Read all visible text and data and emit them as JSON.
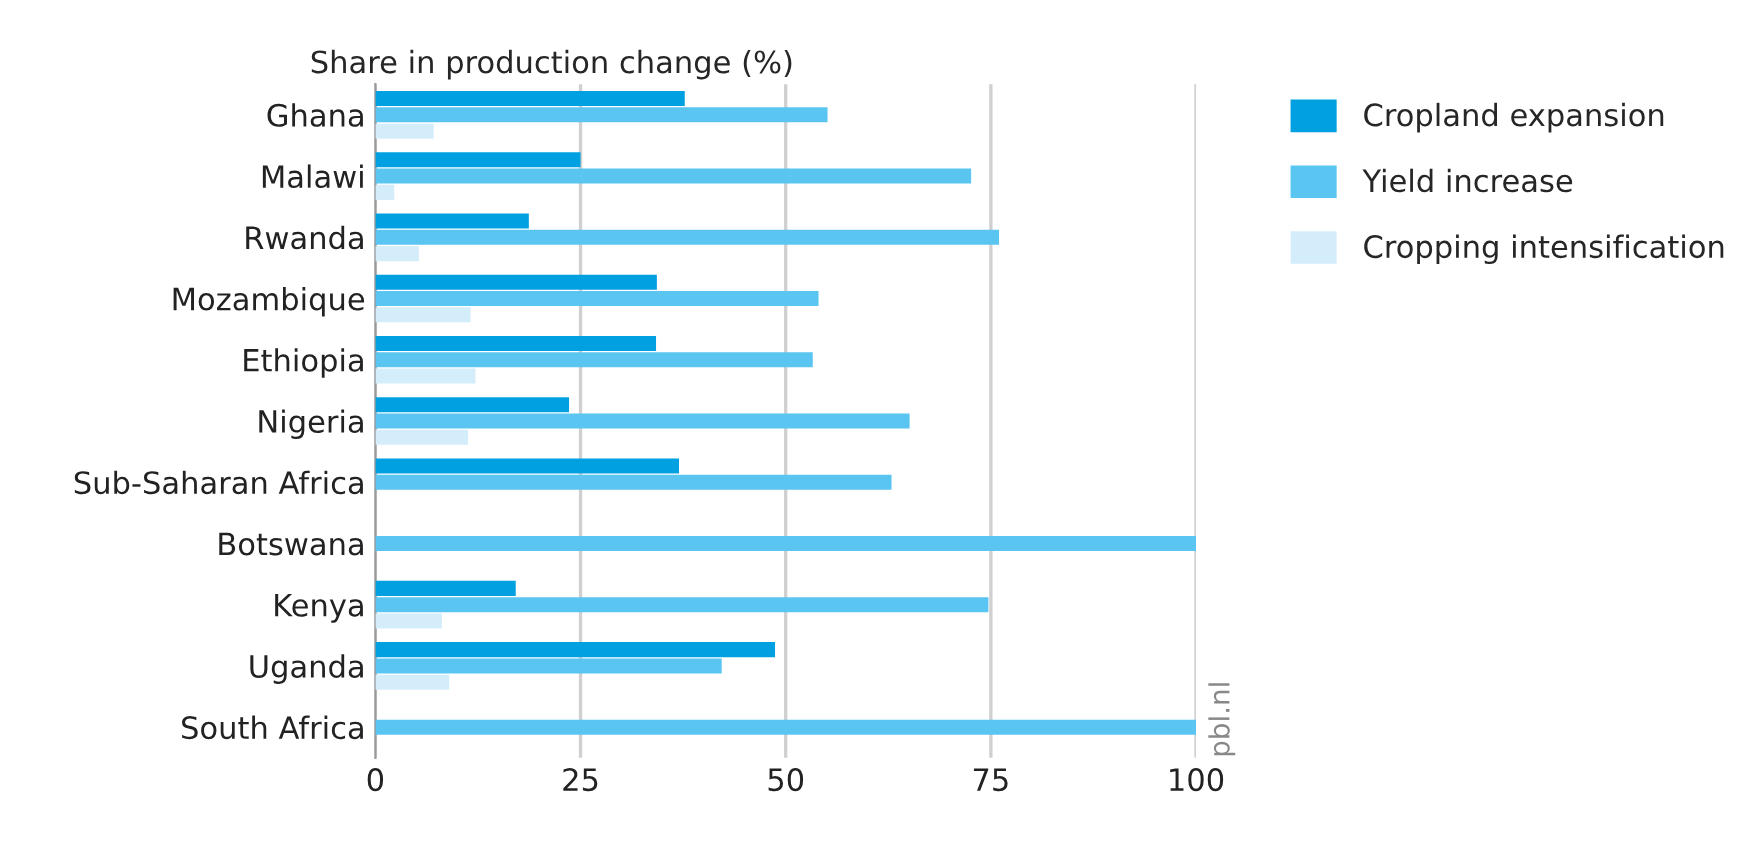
{
  "chart_data": {
    "type": "bar",
    "orientation": "horizontal",
    "xlabel": "Share in production change (%)",
    "categories": [
      "Ghana",
      "Malawi",
      "Rwanda",
      "Mozambique",
      "Ethiopia",
      "Nigeria",
      "Sub-Saharan Africa",
      "Botswana",
      "Kenya",
      "Uganda",
      "South Africa"
    ],
    "series": [
      {
        "name": "Cropland expansion",
        "color": "#00a0e1",
        "values": [
          37.7,
          25,
          18.7,
          34.3,
          34.2,
          23.6,
          37.0,
          null,
          17.1,
          48.7,
          null
        ]
      },
      {
        "name": "Yield increase",
        "color": "#5bc5f2",
        "values": [
          55.1,
          72.6,
          76.0,
          54.0,
          53.3,
          65.1,
          62.9,
          100,
          74.7,
          42.2,
          100
        ]
      },
      {
        "name": "Cropping intensification",
        "color": "#d3edfb",
        "values": [
          7.1,
          2.3,
          5.3,
          11.6,
          12.2,
          11.3,
          null,
          null,
          8.1,
          9.0,
          null
        ]
      }
    ],
    "xlim": [
      0,
      100
    ],
    "xticks": [
      0,
      25,
      50,
      75,
      100
    ],
    "grid": "x",
    "legend": "top right",
    "annotations": [
      "pbl.nl"
    ]
  }
}
